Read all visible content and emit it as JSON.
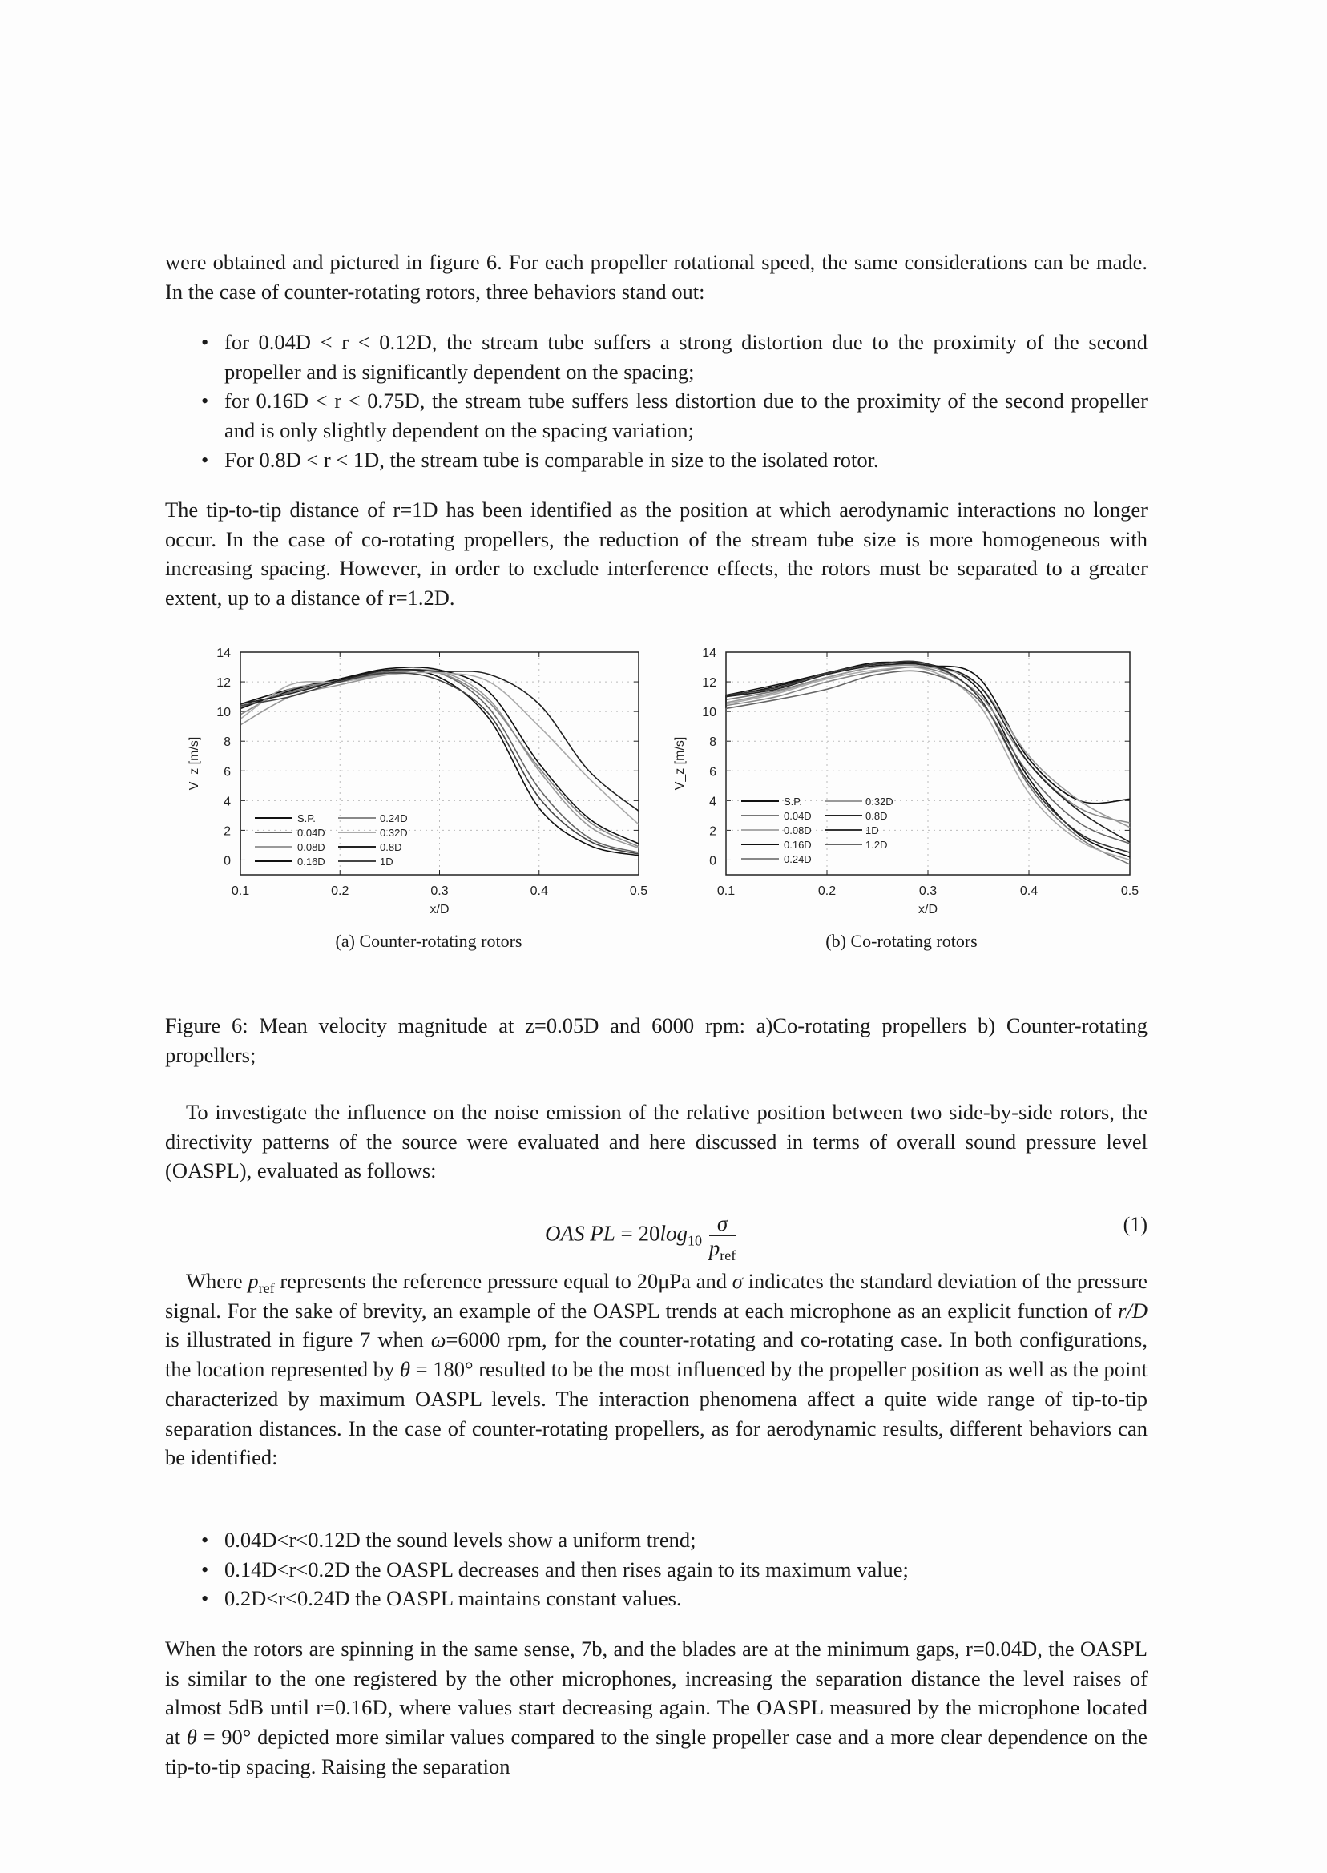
{
  "para1": "were obtained and pictured in figure 6. For each propeller rotational speed, the same considerations can be made. In the case of counter-rotating rotors, three behaviors stand out:",
  "bullets1": [
    "for 0.04D < r < 0.12D, the stream tube suffers a strong distortion due to the proximity of the second propeller and is significantly dependent on the spacing;",
    "for 0.16D < r < 0.75D, the stream tube suffers less distortion due to the proximity of the second propeller and is only slightly dependent on the spacing variation;",
    "For 0.8D < r < 1D, the stream tube is comparable in size to the isolated rotor."
  ],
  "para2": "The tip-to-tip distance of r=1D has been identified as the position at which aerodynamic interactions no longer occur. In the case of co-rotating propellers, the reduction of the stream tube size is more homogeneous with increasing spacing. However, in order to exclude interference effects, the rotors must be separated to a greater extent, up to a distance of r=1.2D.",
  "figure": {
    "caption": "Figure 6: Mean velocity magnitude at z=0.05D and 6000 rpm: a)Co-rotating propellers b) Counter-rotating propellers;",
    "subcaption_a": "(a) Counter-rotating rotors",
    "subcaption_b": "(b) Co-rotating rotors"
  },
  "chart_data": [
    {
      "type": "line",
      "xlabel": "x/D",
      "ylabel": "V_z [m/s]",
      "xlim": [
        0.1,
        0.5
      ],
      "ylim": [
        -1,
        14
      ],
      "xticks": [
        "0.1",
        "0.2",
        "0.3",
        "0.4",
        "0.5"
      ],
      "yticks": [
        "0",
        "2",
        "4",
        "6",
        "8",
        "10",
        "12",
        "14"
      ],
      "grid": true,
      "legend_placement": "bottom-left",
      "x": [
        0.1,
        0.15,
        0.2,
        0.25,
        0.3,
        0.35,
        0.4,
        0.45,
        0.5
      ],
      "series": [
        {
          "name": "S.P.",
          "color": "#111111",
          "values": [
            10.5,
            11.5,
            12.2,
            12.8,
            12.3,
            9.5,
            3.5,
            1.0,
            0.3
          ]
        },
        {
          "name": "0.04D",
          "color": "#666666",
          "values": [
            10.3,
            11.3,
            12.1,
            12.7,
            12.6,
            10.2,
            4.8,
            1.5,
            0.5
          ]
        },
        {
          "name": "0.08D",
          "color": "#999999",
          "values": [
            9.1,
            11.0,
            11.8,
            12.5,
            12.7,
            10.8,
            6.0,
            2.3,
            0.8
          ]
        },
        {
          "name": "0.16D",
          "color": "#111111",
          "values": [
            10.2,
            11.4,
            12.2,
            12.9,
            12.8,
            11.3,
            6.5,
            2.8,
            1.1
          ]
        },
        {
          "name": "0.24D",
          "color": "#888888",
          "values": [
            9.8,
            11.5,
            12.0,
            12.6,
            12.6,
            10.6,
            6.2,
            2.6,
            0.9
          ]
        },
        {
          "name": "0.32D",
          "color": "#aaaaaa",
          "values": [
            9.5,
            11.8,
            12.0,
            12.5,
            12.6,
            12.0,
            9.0,
            5.5,
            2.4
          ]
        },
        {
          "name": "0.8D",
          "color": "#222222",
          "values": [
            10.5,
            11.2,
            12.1,
            12.8,
            12.7,
            12.5,
            10.5,
            6.0,
            3.3
          ]
        },
        {
          "name": "1D",
          "color": "#444444",
          "values": [
            10.4,
            11.0,
            12.0,
            12.6,
            12.1,
            9.8,
            4.2,
            1.3,
            0.4
          ]
        }
      ]
    },
    {
      "type": "line",
      "xlabel": "x/D",
      "ylabel": "V_z [m/s]",
      "xlim": [
        0.1,
        0.5
      ],
      "ylim": [
        -1,
        14
      ],
      "xticks": [
        "0.1",
        "0.2",
        "0.3",
        "0.4",
        "0.5"
      ],
      "yticks": [
        "0",
        "2",
        "4",
        "6",
        "8",
        "10",
        "12",
        "14"
      ],
      "grid": true,
      "legend_placement": "bottom-left",
      "x": [
        0.1,
        0.15,
        0.2,
        0.25,
        0.3,
        0.35,
        0.4,
        0.45,
        0.5
      ],
      "series": [
        {
          "name": "S.P.",
          "color": "#111111",
          "values": [
            11.0,
            11.7,
            12.6,
            13.2,
            13.2,
            11.5,
            5.5,
            1.7,
            0.2
          ]
        },
        {
          "name": "0.04D",
          "color": "#777777",
          "values": [
            10.8,
            11.4,
            12.3,
            13.0,
            13.1,
            11.0,
            5.0,
            1.5,
            -0.3
          ]
        },
        {
          "name": "0.08D",
          "color": "#aaaaaa",
          "values": [
            10.5,
            11.2,
            12.2,
            12.8,
            12.8,
            10.5,
            4.5,
            1.3,
            0.0
          ]
        },
        {
          "name": "0.16D",
          "color": "#111111",
          "values": [
            11.1,
            11.8,
            12.6,
            13.3,
            13.1,
            12.3,
            6.8,
            4.0,
            4.1
          ]
        },
        {
          "name": "0.24D",
          "color": "#888888",
          "values": [
            10.4,
            11.0,
            12.0,
            12.7,
            12.9,
            11.2,
            6.5,
            3.5,
            2.5
          ]
        },
        {
          "name": "0.32D",
          "color": "#999999",
          "values": [
            10.6,
            11.3,
            12.3,
            13.0,
            13.0,
            11.8,
            7.0,
            4.0,
            2.2
          ]
        },
        {
          "name": "0.8D",
          "color": "#222222",
          "values": [
            11.0,
            11.5,
            12.5,
            13.1,
            13.1,
            11.8,
            6.5,
            3.3,
            1.2
          ]
        },
        {
          "name": "1D",
          "color": "#333333",
          "values": [
            11.1,
            11.6,
            12.6,
            13.2,
            13.2,
            11.0,
            5.2,
            1.8,
            0.5
          ]
        },
        {
          "name": "1.2D",
          "color": "#666666",
          "values": [
            10.2,
            10.8,
            11.5,
            12.5,
            12.6,
            10.8,
            5.8,
            2.5,
            1.1
          ]
        }
      ]
    }
  ],
  "para3": "To investigate the influence on the noise emission of the relative position between two side-by-side rotors, the directivity patterns of the source were evaluated and here discussed in terms of overall sound pressure level (OASPL), evaluated as follows:",
  "equation": {
    "lhs": "OAS PL",
    "eq": " = 20",
    "log": "log",
    "base": "10",
    "num": "σ",
    "den": "p",
    "den_sub": "ref",
    "number": "(1)"
  },
  "para4": {
    "a": "Where ",
    "p": "p",
    "ref": "ref",
    "b": " represents the reference pressure equal to 20μPa and ",
    "sigma": "σ",
    "c": " indicates the standard deviation of the pressure signal. For the sake of brevity, an example of the OASPL trends at each microphone as an explicit function of ",
    "rd": "r/D",
    "d": " is illustrated in figure 7 when ",
    "omega": "ω",
    "e": "=6000 rpm, for the counter-rotating and co-rotating case. In both configurations, the location represented by ",
    "theta": "θ",
    "f": " = 180° resulted to be the most influenced by the propeller position as well as the point characterized by maximum OASPL levels. The interaction phenomena affect a quite wide range of tip-to-tip separation distances. In the case of counter-rotating propellers, as for aerodynamic results, different behaviors can be identified:"
  },
  "bullets2": [
    "0.04D<r<0.12D the sound levels show a uniform trend;",
    "0.14D<r<0.2D the OASPL decreases and then rises again to its maximum value;",
    "0.2D<r<0.24D the OASPL maintains constant values."
  ],
  "para5": {
    "a": "When the rotors are spinning in the same sense, 7b, and the blades are at the minimum gaps, r=0.04D, the OASPL is similar to the one registered by the other microphones, increasing the separation distance the level raises of almost 5dB until r=0.16D, where values start decreasing again. The OASPL measured by the microphone located at ",
    "theta": "θ",
    "b": " = 90° depicted more similar values compared to the single propeller case and a more clear dependence on the tip-to-tip spacing. Raising the separation"
  }
}
